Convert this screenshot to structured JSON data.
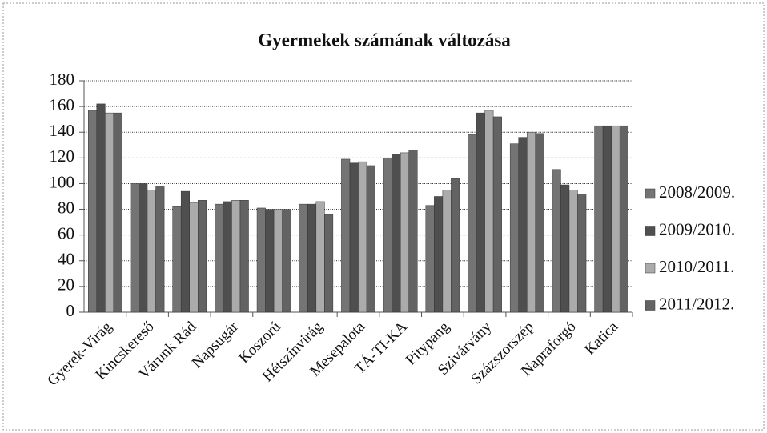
{
  "chart_data": {
    "type": "bar",
    "title": "Gyermekek számának változása",
    "categories": [
      "Gyerek-Virág",
      "Kincskereső",
      "Várunk Rád",
      "Napsugár",
      "Koszorú",
      "Hétszínvirág",
      "Mesepalota",
      "TÁ-TI-KA",
      "Pitypang",
      "Szivárvány",
      "Százszorszép",
      "Napraforgó",
      "Katica"
    ],
    "series": [
      {
        "name": "2008/2009.",
        "color": "#747474",
        "values": [
          157,
          100,
          82,
          84,
          81,
          84,
          119,
          120,
          83,
          138,
          131,
          111,
          145
        ]
      },
      {
        "name": "2009/2010.",
        "color": "#4f4f4f",
        "values": [
          162,
          100,
          94,
          86,
          80,
          84,
          116,
          123,
          90,
          155,
          136,
          99,
          145
        ]
      },
      {
        "name": "2010/2011.",
        "color": "#ababab",
        "values": [
          155,
          95,
          85,
          87,
          80,
          86,
          117,
          124,
          95,
          157,
          140,
          95,
          145
        ]
      },
      {
        "name": "2011/2012.",
        "color": "#636363",
        "values": [
          155,
          98,
          87,
          87,
          80,
          76,
          114,
          126,
          104,
          152,
          139,
          92,
          145
        ]
      }
    ],
    "ylim": [
      0,
      180
    ],
    "yticks": [
      0,
      20,
      40,
      60,
      80,
      100,
      120,
      140,
      160,
      180
    ],
    "grid": true,
    "legend": "right"
  }
}
